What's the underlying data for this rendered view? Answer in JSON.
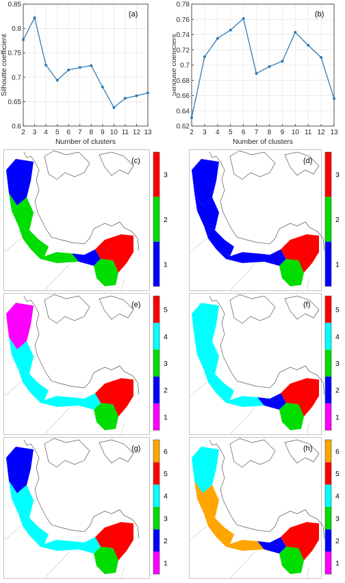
{
  "chart_data": [
    {
      "type": "line",
      "panel": "(a)",
      "xlabel": "Number of clusters",
      "ylabel": "Silhoutte coefficient",
      "x": [
        2,
        3,
        4,
        5,
        6,
        7,
        8,
        9,
        10,
        11,
        12,
        13
      ],
      "y": [
        0.777,
        0.822,
        0.725,
        0.694,
        0.715,
        0.72,
        0.724,
        0.68,
        0.638,
        0.657,
        0.662,
        0.668
      ],
      "xlim": [
        2,
        13
      ],
      "ylim": [
        0.6,
        0.85
      ],
      "yticks": [
        "0.6",
        "0.65",
        "0.7",
        "0.75",
        "0.8",
        "0.85"
      ],
      "ytick_values": [
        0.6,
        0.65,
        0.7,
        0.75,
        0.8,
        0.85
      ],
      "grid": true
    },
    {
      "type": "line",
      "panel": "(b)",
      "xlabel": "Number of clusters",
      "ylabel": "Silhoutte coefficient",
      "x": [
        2,
        3,
        4,
        5,
        6,
        7,
        8,
        9,
        10,
        11,
        12,
        13
      ],
      "y": [
        0.631,
        0.711,
        0.735,
        0.746,
        0.761,
        0.689,
        0.698,
        0.705,
        0.743,
        0.726,
        0.71,
        0.656
      ],
      "xlim": [
        2,
        13
      ],
      "ylim": [
        0.62,
        0.78
      ],
      "yticks": [
        "0.62",
        "0.64",
        "0.66",
        "0.68",
        "0.7",
        "0.72",
        "0.74",
        "0.76",
        "0.78"
      ],
      "ytick_values": [
        0.62,
        0.64,
        0.66,
        0.68,
        0.7,
        0.72,
        0.74,
        0.76,
        0.78
      ],
      "grid": true
    }
  ],
  "xticks": [
    "2",
    "3",
    "4",
    "5",
    "6",
    "7",
    "8",
    "9",
    "10",
    "11",
    "12",
    "13"
  ],
  "series_color": "#2e7ab3",
  "maps": [
    {
      "label": "(c)",
      "colors": [
        "#0000ff",
        "#00dd00",
        "#ff0000"
      ],
      "ticks": [
        "1",
        "2",
        "3"
      ],
      "zones": [
        "#0000ff",
        "#00dd00",
        "#00dd00",
        "#00dd00",
        "#0000ff",
        "#00dd00",
        "#ff0000"
      ]
    },
    {
      "label": "(d)",
      "colors": [
        "#0000ff",
        "#00dd00",
        "#ff0000"
      ],
      "ticks": [
        "1",
        "2",
        "3"
      ],
      "zones": [
        "#0000ff",
        "#0000ff",
        "#0000ff",
        "#0000ff",
        "#0000ff",
        "#00dd00",
        "#ff0000"
      ]
    },
    {
      "label": "(e)",
      "colors": [
        "#ff00ff",
        "#0000ff",
        "#00dd00",
        "#00ffff",
        "#ff0000"
      ],
      "ticks": [
        "1",
        "2",
        "3",
        "4",
        "5"
      ],
      "zones": [
        "#ff00ff",
        "#00ffff",
        "#00ffff",
        "#00ffff",
        "#00ffff",
        "#00dd00",
        "#ff0000"
      ]
    },
    {
      "label": "(f)",
      "colors": [
        "#ff00ff",
        "#0000ff",
        "#00dd00",
        "#00ffff",
        "#ff0000"
      ],
      "ticks": [
        "1",
        "2",
        "3",
        "4",
        "5"
      ],
      "zones": [
        "#00ffff",
        "#00ffff",
        "#00ffff",
        "#00ffff",
        "#0000ff",
        "#00dd00",
        "#ff0000"
      ]
    },
    {
      "label": "(g)",
      "colors": [
        "#ff00ff",
        "#0000ff",
        "#00dd00",
        "#00ffff",
        "#ff0000",
        "#ffa500"
      ],
      "ticks": [
        "1",
        "2",
        "3",
        "4",
        "5",
        "6"
      ],
      "zones": [
        "#0000ff",
        "#00ffff",
        "#00ffff",
        "#00ffff",
        "#00ffff",
        "#00dd00",
        "#ff0000"
      ]
    },
    {
      "label": "(h)",
      "colors": [
        "#ff00ff",
        "#0000ff",
        "#00dd00",
        "#00ffff",
        "#ff0000",
        "#ffa500"
      ],
      "ticks": [
        "1",
        "2",
        "3",
        "4",
        "5",
        "6"
      ],
      "zones": [
        "#00ffff",
        "#ffa500",
        "#ffa500",
        "#ffa500",
        "#0000ff",
        "#00dd00",
        "#ff0000"
      ]
    }
  ]
}
